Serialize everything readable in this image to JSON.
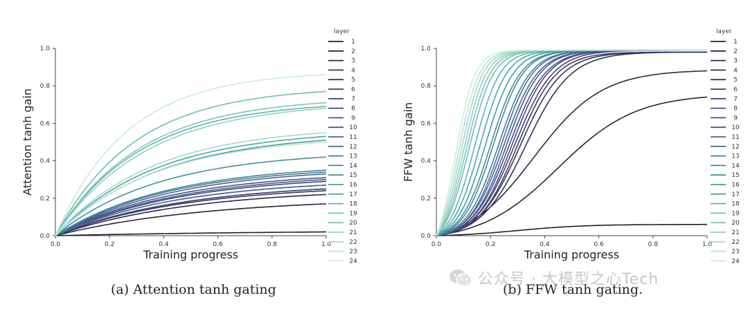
{
  "captions": {
    "a": "(a) Attention tanh gating",
    "b": "(b) FFW tanh gating."
  },
  "watermark": {
    "text": "公众号 · 大模型之心Tech",
    "icon": "wechat-icon"
  },
  "legend": {
    "title": "layer",
    "entries": [
      "1",
      "2",
      "3",
      "4",
      "5",
      "6",
      "7",
      "8",
      "9",
      "10",
      "11",
      "12",
      "13",
      "14",
      "15",
      "16",
      "17",
      "18",
      "19",
      "20",
      "21",
      "22",
      "23",
      "24"
    ]
  },
  "colors": {
    "layer_1": "#1f1e2b",
    "layer_8": "#4b4a8a",
    "layer_16": "#3ea2a0",
    "layer_24": "#c9ecd8"
  },
  "chart_data": [
    {
      "type": "line",
      "title": "",
      "xlabel": "Training progress",
      "ylabel": "Attention tanh gain",
      "xlim": [
        0,
        1
      ],
      "ylim": [
        0,
        1
      ],
      "xticks": [
        "0.0",
        "0.2",
        "0.4",
        "0.6",
        "0.8",
        "1.0"
      ],
      "yticks": [
        "0.0",
        "0.2",
        "0.4",
        "0.6",
        "0.8",
        "1.0"
      ],
      "grid": false,
      "legend": "right",
      "series_shape": "saturating",
      "series": [
        {
          "name": "1",
          "final": 0.02,
          "k": 1.2
        },
        {
          "name": "2",
          "final": 0.17,
          "k": 1.8
        },
        {
          "name": "3",
          "final": 0.22,
          "k": 2.0
        },
        {
          "name": "4",
          "final": 0.25,
          "k": 2.1
        },
        {
          "name": "5",
          "final": 0.24,
          "k": 2.1
        },
        {
          "name": "6",
          "final": 0.27,
          "k": 2.2
        },
        {
          "name": "7",
          "final": 0.29,
          "k": 2.2
        },
        {
          "name": "8",
          "final": 0.25,
          "k": 2.1
        },
        {
          "name": "9",
          "final": 0.31,
          "k": 2.3
        },
        {
          "name": "10",
          "final": 0.3,
          "k": 2.2
        },
        {
          "name": "11",
          "final": 0.33,
          "k": 2.3
        },
        {
          "name": "12",
          "final": 0.27,
          "k": 2.2
        },
        {
          "name": "13",
          "final": 0.34,
          "k": 2.4
        },
        {
          "name": "14",
          "final": 0.35,
          "k": 2.4
        },
        {
          "name": "15",
          "final": 0.42,
          "k": 2.6
        },
        {
          "name": "16",
          "final": 0.51,
          "k": 2.6
        },
        {
          "name": "17",
          "final": 0.53,
          "k": 2.7
        },
        {
          "name": "18",
          "final": 0.69,
          "k": 3.2
        },
        {
          "name": "19",
          "final": 0.77,
          "k": 3.4
        },
        {
          "name": "20",
          "final": 0.71,
          "k": 3.2
        },
        {
          "name": "21",
          "final": 0.68,
          "k": 3.0
        },
        {
          "name": "22",
          "final": 0.55,
          "k": 2.8
        },
        {
          "name": "23",
          "final": 0.5,
          "k": 2.7
        },
        {
          "name": "24",
          "final": 0.86,
          "k": 3.8
        }
      ]
    },
    {
      "type": "line",
      "title": "",
      "xlabel": "Training progress",
      "ylabel": "FFW tanh gain",
      "xlim": [
        0,
        1
      ],
      "ylim": [
        0,
        1
      ],
      "xticks": [
        "0.0",
        "0.2",
        "0.4",
        "0.6",
        "0.8",
        "1.0"
      ],
      "yticks": [
        "0.0",
        "0.2",
        "0.4",
        "0.6",
        "0.8",
        "1.0"
      ],
      "grid": false,
      "legend": "right",
      "series_shape": "sigmoid",
      "series": [
        {
          "name": "1",
          "final": 0.06,
          "mid": 0.3,
          "k": 8
        },
        {
          "name": "2",
          "final": 0.74,
          "mid": 0.45,
          "k": 7
        },
        {
          "name": "3",
          "final": 0.88,
          "mid": 0.36,
          "k": 8
        },
        {
          "name": "4",
          "final": 0.98,
          "mid": 0.33,
          "k": 12
        },
        {
          "name": "5",
          "final": 0.98,
          "mid": 0.31,
          "k": 13
        },
        {
          "name": "6",
          "final": 0.98,
          "mid": 0.3,
          "k": 14
        },
        {
          "name": "7",
          "final": 0.99,
          "mid": 0.29,
          "k": 14
        },
        {
          "name": "8",
          "final": 0.99,
          "mid": 0.28,
          "k": 15
        },
        {
          "name": "9",
          "final": 0.99,
          "mid": 0.27,
          "k": 15
        },
        {
          "name": "10",
          "final": 0.99,
          "mid": 0.26,
          "k": 16
        },
        {
          "name": "11",
          "final": 0.99,
          "mid": 0.25,
          "k": 16
        },
        {
          "name": "12",
          "final": 0.99,
          "mid": 0.24,
          "k": 17
        },
        {
          "name": "13",
          "final": 0.99,
          "mid": 0.23,
          "k": 17
        },
        {
          "name": "14",
          "final": 0.99,
          "mid": 0.21,
          "k": 18
        },
        {
          "name": "15",
          "final": 0.99,
          "mid": 0.2,
          "k": 18
        },
        {
          "name": "16",
          "final": 0.99,
          "mid": 0.18,
          "k": 19
        },
        {
          "name": "17",
          "final": 0.99,
          "mid": 0.16,
          "k": 20
        },
        {
          "name": "18",
          "final": 0.99,
          "mid": 0.14,
          "k": 21
        },
        {
          "name": "19",
          "final": 0.99,
          "mid": 0.12,
          "k": 22
        },
        {
          "name": "20",
          "final": 0.99,
          "mid": 0.11,
          "k": 23
        },
        {
          "name": "21",
          "final": 0.99,
          "mid": 0.1,
          "k": 24
        },
        {
          "name": "22",
          "final": 0.99,
          "mid": 0.09,
          "k": 25
        },
        {
          "name": "23",
          "final": 0.99,
          "mid": 0.08,
          "k": 26
        },
        {
          "name": "24",
          "final": 0.99,
          "mid": 0.07,
          "k": 28
        }
      ]
    }
  ]
}
